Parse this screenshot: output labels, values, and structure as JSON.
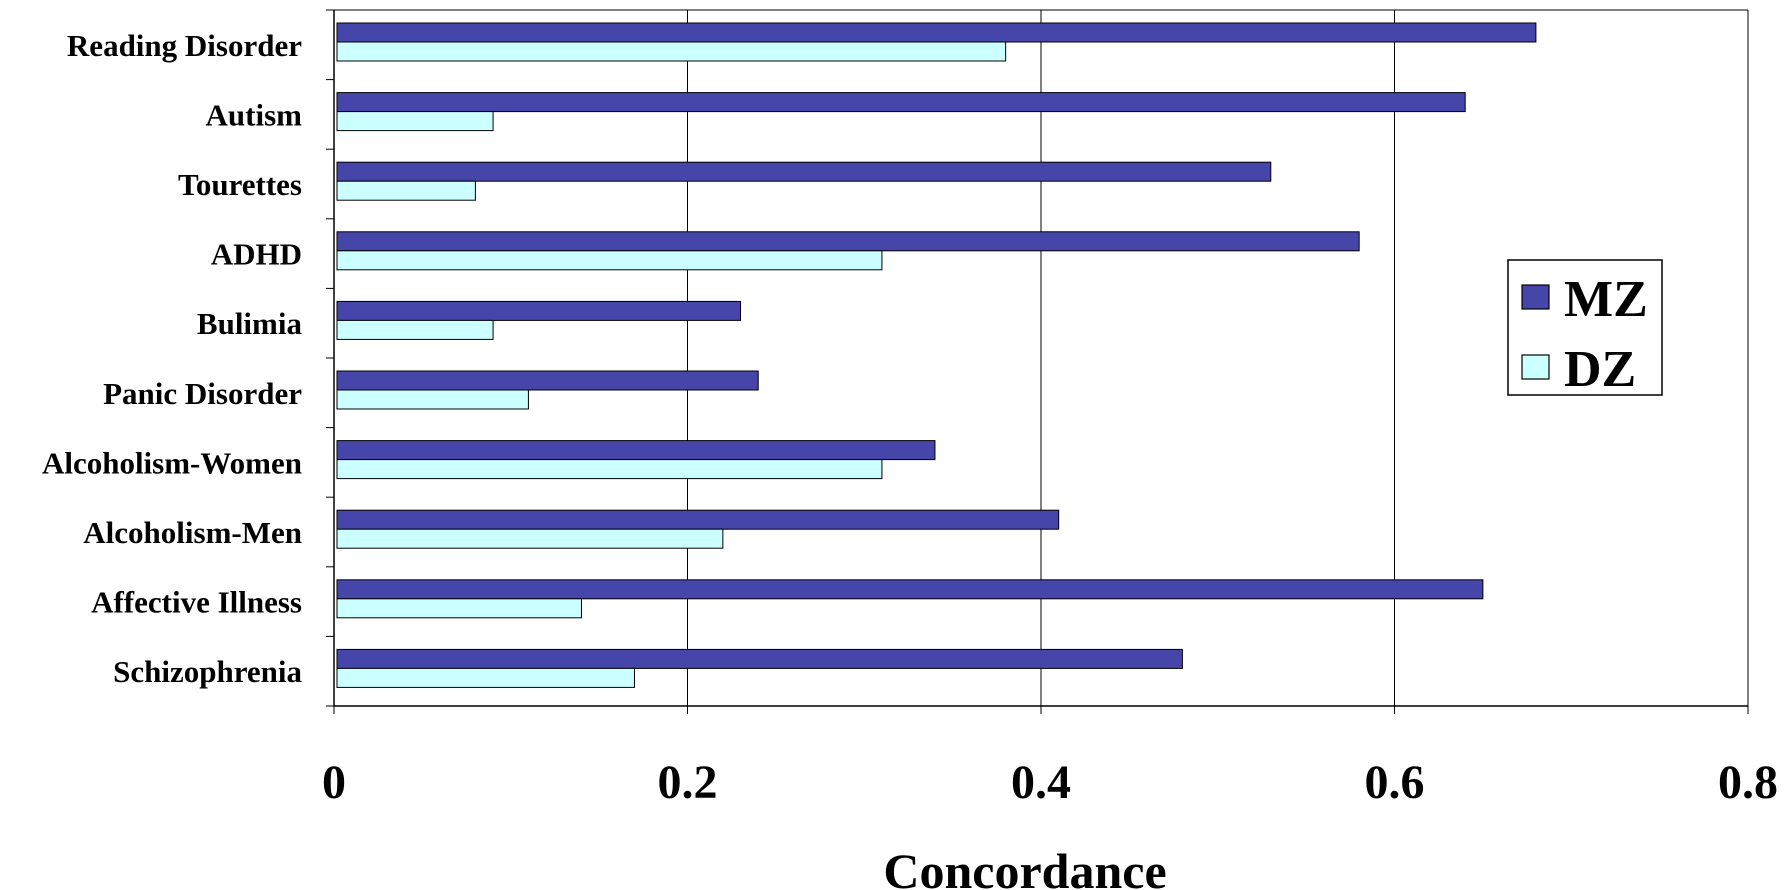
{
  "chart_data": {
    "type": "bar",
    "orientation": "horizontal",
    "categories": [
      "Reading Disorder",
      "Autism",
      "Tourettes",
      "ADHD",
      "Bulimia",
      "Panic Disorder",
      "Alcoholism-Women",
      "Alcoholism-Men",
      "Affective Illness",
      "Schizophrenia"
    ],
    "series": [
      {
        "name": "MZ",
        "color": "#4646AA",
        "values": [
          0.68,
          0.64,
          0.53,
          0.58,
          0.23,
          0.24,
          0.34,
          0.41,
          0.65,
          0.48
        ]
      },
      {
        "name": "DZ",
        "color": "#CCFFFF",
        "values": [
          0.38,
          0.09,
          0.08,
          0.31,
          0.09,
          0.11,
          0.31,
          0.22,
          0.14,
          0.17
        ]
      }
    ],
    "xlabel": "Concordance",
    "ylabel": "",
    "xlim": [
      0,
      0.8
    ],
    "xticks": [
      "0",
      "0.2",
      "0.4",
      "0.6",
      "0.8"
    ],
    "grid": "vertical",
    "legend_position": "right"
  }
}
